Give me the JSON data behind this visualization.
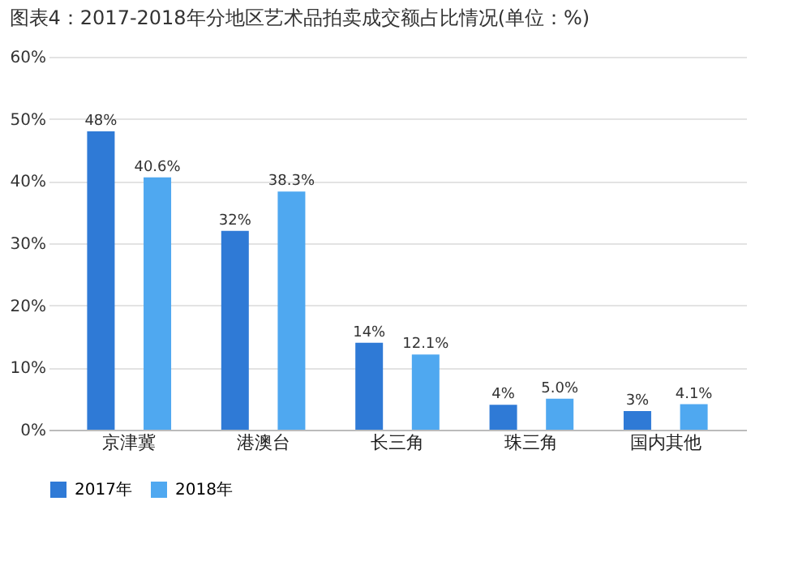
{
  "chart_data": {
    "type": "bar",
    "title": "图表4：2017-2018年分地区艺术品拍卖成交额占比情况(单位：%)",
    "categories": [
      "京津冀",
      "港澳台",
      "长三角",
      "珠三角",
      "国内其他"
    ],
    "series": [
      {
        "name": "2017年",
        "color": "#2f7ad6",
        "values": [
          48,
          32,
          14,
          4,
          3
        ],
        "value_labels": [
          "48%",
          "32%",
          "14%",
          "4%",
          "3%"
        ]
      },
      {
        "name": "2018年",
        "color": "#4fa8f0",
        "values": [
          40.6,
          38.3,
          12.1,
          5.0,
          4.1
        ],
        "value_labels": [
          "40.6%",
          "38.3%",
          "12.1%",
          "5.0%",
          "4.1%"
        ]
      }
    ],
    "ylim": [
      0,
      60
    ],
    "yticks": [
      {
        "value": 0,
        "label": "0%"
      },
      {
        "value": 10,
        "label": "10%"
      },
      {
        "value": 20,
        "label": "20%"
      },
      {
        "value": 30,
        "label": "30%"
      },
      {
        "value": 40,
        "label": "40%"
      },
      {
        "value": 50,
        "label": "50%"
      },
      {
        "value": 60,
        "label": "60%"
      }
    ],
    "grid": "y",
    "legend": "bottom"
  }
}
